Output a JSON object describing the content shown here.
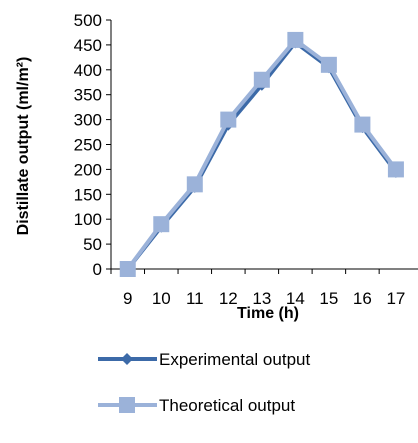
{
  "chart_data": {
    "type": "line",
    "title": "",
    "xlabel": "Time (h)",
    "ylabel": "Distillate output (ml/m²)",
    "x": [
      "9",
      "10",
      "11",
      "12",
      "13",
      "14",
      "15",
      "16",
      "17"
    ],
    "ylim": [
      0,
      500
    ],
    "yticks": [
      "0",
      "50",
      "100",
      "150",
      "200",
      "250",
      "300",
      "350",
      "400",
      "450",
      "500"
    ],
    "grid": false,
    "legend_position": "bottom",
    "series": [
      {
        "name": "Experimental output",
        "values": [
          0,
          85,
          165,
          290,
          370,
          455,
          405,
          285,
          195
        ],
        "color": "#3C6AA8",
        "marker": "diamond"
      },
      {
        "name": "Theoretical output",
        "values": [
          0,
          90,
          170,
          300,
          380,
          460,
          410,
          290,
          200
        ],
        "color": "#9BB2D9",
        "marker": "square"
      }
    ]
  }
}
